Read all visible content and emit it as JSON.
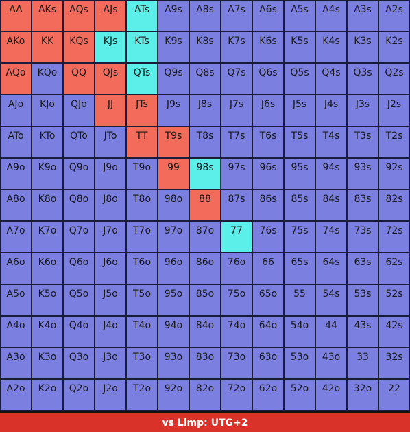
{
  "legend": {
    "fold_color": "#7b7fe0",
    "raise_color": "#f26b5b",
    "call_color": "#5ceee9"
  },
  "grid": {
    "rows": [
      [
        {
          "label": "AA",
          "action": "raise"
        },
        {
          "label": "AKs",
          "action": "raise"
        },
        {
          "label": "AQs",
          "action": "raise"
        },
        {
          "label": "AJs",
          "action": "raise"
        },
        {
          "label": "ATs",
          "action": "call"
        },
        {
          "label": "A9s",
          "action": "fold"
        },
        {
          "label": "A8s",
          "action": "fold"
        },
        {
          "label": "A7s",
          "action": "fold"
        },
        {
          "label": "A6s",
          "action": "fold"
        },
        {
          "label": "A5s",
          "action": "fold"
        },
        {
          "label": "A4s",
          "action": "fold"
        },
        {
          "label": "A3s",
          "action": "fold"
        },
        {
          "label": "A2s",
          "action": "fold"
        }
      ],
      [
        {
          "label": "AKo",
          "action": "raise"
        },
        {
          "label": "KK",
          "action": "raise"
        },
        {
          "label": "KQs",
          "action": "raise"
        },
        {
          "label": "KJs",
          "action": "call"
        },
        {
          "label": "KTs",
          "action": "call"
        },
        {
          "label": "K9s",
          "action": "fold"
        },
        {
          "label": "K8s",
          "action": "fold"
        },
        {
          "label": "K7s",
          "action": "fold"
        },
        {
          "label": "K6s",
          "action": "fold"
        },
        {
          "label": "K5s",
          "action": "fold"
        },
        {
          "label": "K4s",
          "action": "fold"
        },
        {
          "label": "K3s",
          "action": "fold"
        },
        {
          "label": "K2s",
          "action": "fold"
        }
      ],
      [
        {
          "label": "AQo",
          "action": "raise"
        },
        {
          "label": "KQo",
          "action": "fold"
        },
        {
          "label": "QQ",
          "action": "raise"
        },
        {
          "label": "QJs",
          "action": "raise"
        },
        {
          "label": "QTs",
          "action": "call"
        },
        {
          "label": "Q9s",
          "action": "fold"
        },
        {
          "label": "Q8s",
          "action": "fold"
        },
        {
          "label": "Q7s",
          "action": "fold"
        },
        {
          "label": "Q6s",
          "action": "fold"
        },
        {
          "label": "Q5s",
          "action": "fold"
        },
        {
          "label": "Q4s",
          "action": "fold"
        },
        {
          "label": "Q3s",
          "action": "fold"
        },
        {
          "label": "Q2s",
          "action": "fold"
        }
      ],
      [
        {
          "label": "AJo",
          "action": "fold"
        },
        {
          "label": "KJo",
          "action": "fold"
        },
        {
          "label": "QJo",
          "action": "fold"
        },
        {
          "label": "JJ",
          "action": "raise"
        },
        {
          "label": "JTs",
          "action": "raise"
        },
        {
          "label": "J9s",
          "action": "fold"
        },
        {
          "label": "J8s",
          "action": "fold"
        },
        {
          "label": "J7s",
          "action": "fold"
        },
        {
          "label": "J6s",
          "action": "fold"
        },
        {
          "label": "J5s",
          "action": "fold"
        },
        {
          "label": "J4s",
          "action": "fold"
        },
        {
          "label": "J3s",
          "action": "fold"
        },
        {
          "label": "J2s",
          "action": "fold"
        }
      ],
      [
        {
          "label": "ATo",
          "action": "fold"
        },
        {
          "label": "KTo",
          "action": "fold"
        },
        {
          "label": "QTo",
          "action": "fold"
        },
        {
          "label": "JTo",
          "action": "fold"
        },
        {
          "label": "TT",
          "action": "raise"
        },
        {
          "label": "T9s",
          "action": "raise"
        },
        {
          "label": "T8s",
          "action": "fold"
        },
        {
          "label": "T7s",
          "action": "fold"
        },
        {
          "label": "T6s",
          "action": "fold"
        },
        {
          "label": "T5s",
          "action": "fold"
        },
        {
          "label": "T4s",
          "action": "fold"
        },
        {
          "label": "T3s",
          "action": "fold"
        },
        {
          "label": "T2s",
          "action": "fold"
        }
      ],
      [
        {
          "label": "A9o",
          "action": "fold"
        },
        {
          "label": "K9o",
          "action": "fold"
        },
        {
          "label": "Q9o",
          "action": "fold"
        },
        {
          "label": "J9o",
          "action": "fold"
        },
        {
          "label": "T9o",
          "action": "fold"
        },
        {
          "label": "99",
          "action": "raise"
        },
        {
          "label": "98s",
          "action": "call"
        },
        {
          "label": "97s",
          "action": "fold"
        },
        {
          "label": "96s",
          "action": "fold"
        },
        {
          "label": "95s",
          "action": "fold"
        },
        {
          "label": "94s",
          "action": "fold"
        },
        {
          "label": "93s",
          "action": "fold"
        },
        {
          "label": "92s",
          "action": "fold"
        }
      ],
      [
        {
          "label": "A8o",
          "action": "fold"
        },
        {
          "label": "K8o",
          "action": "fold"
        },
        {
          "label": "Q8o",
          "action": "fold"
        },
        {
          "label": "J8o",
          "action": "fold"
        },
        {
          "label": "T8o",
          "action": "fold"
        },
        {
          "label": "98o",
          "action": "fold"
        },
        {
          "label": "88",
          "action": "raise"
        },
        {
          "label": "87s",
          "action": "fold"
        },
        {
          "label": "86s",
          "action": "fold"
        },
        {
          "label": "85s",
          "action": "fold"
        },
        {
          "label": "84s",
          "action": "fold"
        },
        {
          "label": "83s",
          "action": "fold"
        },
        {
          "label": "82s",
          "action": "fold"
        }
      ],
      [
        {
          "label": "A7o",
          "action": "fold"
        },
        {
          "label": "K7o",
          "action": "fold"
        },
        {
          "label": "Q7o",
          "action": "fold"
        },
        {
          "label": "J7o",
          "action": "fold"
        },
        {
          "label": "T7o",
          "action": "fold"
        },
        {
          "label": "97o",
          "action": "fold"
        },
        {
          "label": "87o",
          "action": "fold"
        },
        {
          "label": "77",
          "action": "call"
        },
        {
          "label": "76s",
          "action": "fold"
        },
        {
          "label": "75s",
          "action": "fold"
        },
        {
          "label": "74s",
          "action": "fold"
        },
        {
          "label": "73s",
          "action": "fold"
        },
        {
          "label": "72s",
          "action": "fold"
        }
      ],
      [
        {
          "label": "A6o",
          "action": "fold"
        },
        {
          "label": "K6o",
          "action": "fold"
        },
        {
          "label": "Q6o",
          "action": "fold"
        },
        {
          "label": "J6o",
          "action": "fold"
        },
        {
          "label": "T6o",
          "action": "fold"
        },
        {
          "label": "96o",
          "action": "fold"
        },
        {
          "label": "86o",
          "action": "fold"
        },
        {
          "label": "76o",
          "action": "fold"
        },
        {
          "label": "66",
          "action": "fold"
        },
        {
          "label": "65s",
          "action": "fold"
        },
        {
          "label": "64s",
          "action": "fold"
        },
        {
          "label": "63s",
          "action": "fold"
        },
        {
          "label": "62s",
          "action": "fold"
        }
      ],
      [
        {
          "label": "A5o",
          "action": "fold"
        },
        {
          "label": "K5o",
          "action": "fold"
        },
        {
          "label": "Q5o",
          "action": "fold"
        },
        {
          "label": "J5o",
          "action": "fold"
        },
        {
          "label": "T5o",
          "action": "fold"
        },
        {
          "label": "95o",
          "action": "fold"
        },
        {
          "label": "85o",
          "action": "fold"
        },
        {
          "label": "75o",
          "action": "fold"
        },
        {
          "label": "65o",
          "action": "fold"
        },
        {
          "label": "55",
          "action": "fold"
        },
        {
          "label": "54s",
          "action": "fold"
        },
        {
          "label": "53s",
          "action": "fold"
        },
        {
          "label": "52s",
          "action": "fold"
        }
      ],
      [
        {
          "label": "A4o",
          "action": "fold"
        },
        {
          "label": "K4o",
          "action": "fold"
        },
        {
          "label": "Q4o",
          "action": "fold"
        },
        {
          "label": "J4o",
          "action": "fold"
        },
        {
          "label": "T4o",
          "action": "fold"
        },
        {
          "label": "94o",
          "action": "fold"
        },
        {
          "label": "84o",
          "action": "fold"
        },
        {
          "label": "74o",
          "action": "fold"
        },
        {
          "label": "64o",
          "action": "fold"
        },
        {
          "label": "54o",
          "action": "fold"
        },
        {
          "label": "44",
          "action": "fold"
        },
        {
          "label": "43s",
          "action": "fold"
        },
        {
          "label": "42s",
          "action": "fold"
        }
      ],
      [
        {
          "label": "A3o",
          "action": "fold"
        },
        {
          "label": "K3o",
          "action": "fold"
        },
        {
          "label": "Q3o",
          "action": "fold"
        },
        {
          "label": "J3o",
          "action": "fold"
        },
        {
          "label": "T3o",
          "action": "fold"
        },
        {
          "label": "93o",
          "action": "fold"
        },
        {
          "label": "83o",
          "action": "fold"
        },
        {
          "label": "73o",
          "action": "fold"
        },
        {
          "label": "63o",
          "action": "fold"
        },
        {
          "label": "53o",
          "action": "fold"
        },
        {
          "label": "43o",
          "action": "fold"
        },
        {
          "label": "33",
          "action": "fold"
        },
        {
          "label": "32s",
          "action": "fold"
        }
      ],
      [
        {
          "label": "A2o",
          "action": "fold"
        },
        {
          "label": "K2o",
          "action": "fold"
        },
        {
          "label": "Q2o",
          "action": "fold"
        },
        {
          "label": "J2o",
          "action": "fold"
        },
        {
          "label": "T2o",
          "action": "fold"
        },
        {
          "label": "92o",
          "action": "fold"
        },
        {
          "label": "82o",
          "action": "fold"
        },
        {
          "label": "72o",
          "action": "fold"
        },
        {
          "label": "62o",
          "action": "fold"
        },
        {
          "label": "52o",
          "action": "fold"
        },
        {
          "label": "42o",
          "action": "fold"
        },
        {
          "label": "32o",
          "action": "fold"
        },
        {
          "label": "22",
          "action": "fold"
        }
      ]
    ]
  },
  "footer": {
    "title": "vs Limp: UTG+2"
  }
}
